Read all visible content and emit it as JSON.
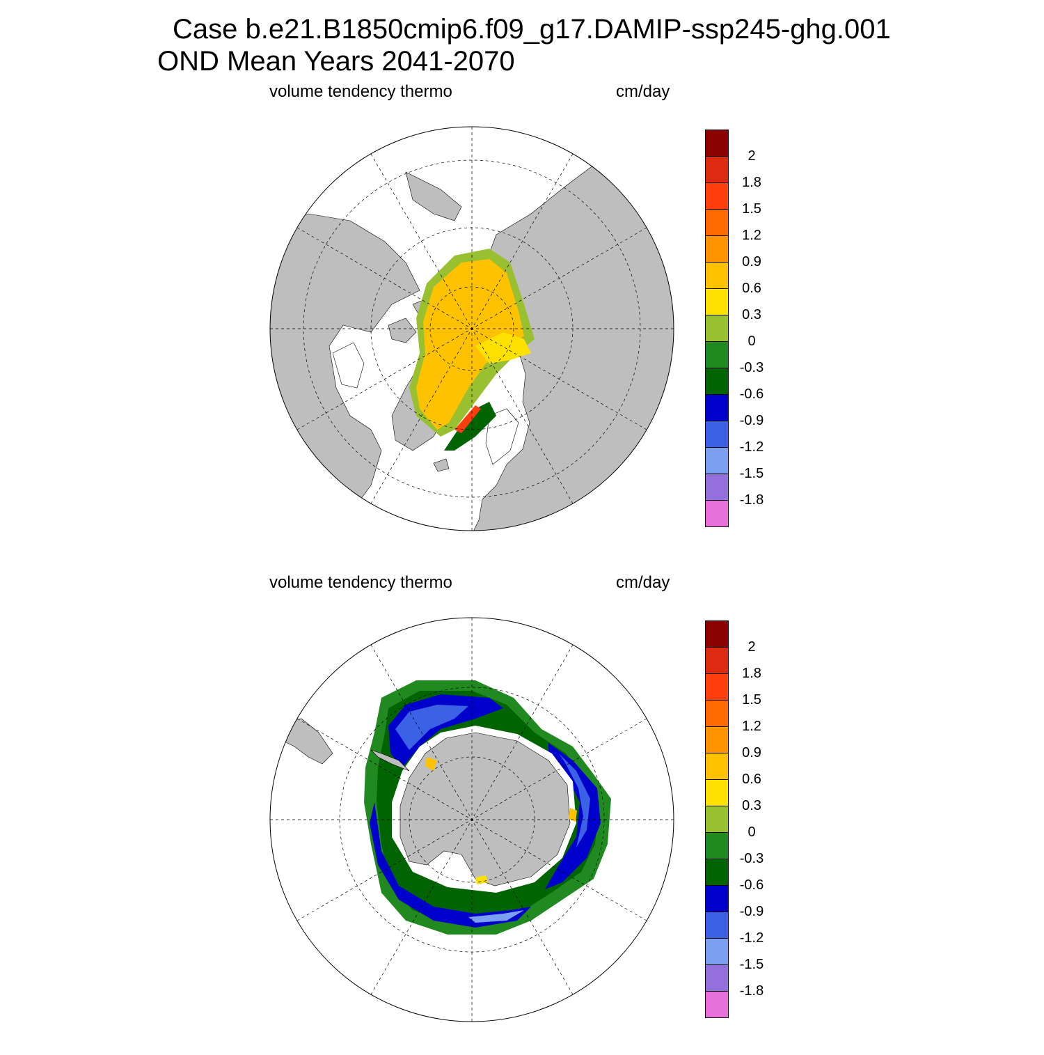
{
  "title": {
    "line1": "Case b.e21.B1850cmip6.f09_g17.DAMIP-ssp245-ghg.001",
    "line2": "OND Mean   Years 2041-2070"
  },
  "panels": [
    {
      "left_label": "volume tendency thermo",
      "right_label": "cm/day",
      "hemisphere": "north"
    },
    {
      "left_label": "volume tendency thermo",
      "right_label": "cm/day",
      "hemisphere": "south"
    }
  ],
  "colorbar": {
    "colors": [
      "#8B0000",
      "#DD2B12",
      "#FF3D0D",
      "#FF6A00",
      "#FF9400",
      "#FFC200",
      "#FFE100",
      "#99C031",
      "#208A20",
      "#006400",
      "#0000CD",
      "#3B61E5",
      "#7BA0F2",
      "#9370DB",
      "#E770DB"
    ],
    "tick_labels": [
      "2",
      "1.8",
      "1.5",
      "1.2",
      "0.9",
      "0.6",
      "0.3",
      "0",
      "-0.3",
      "-0.6",
      "-0.9",
      "-1.2",
      "-1.5",
      "-1.8"
    ]
  },
  "colors": {
    "land": "#BEBEBE",
    "ocean": "#FFFFFF"
  }
}
